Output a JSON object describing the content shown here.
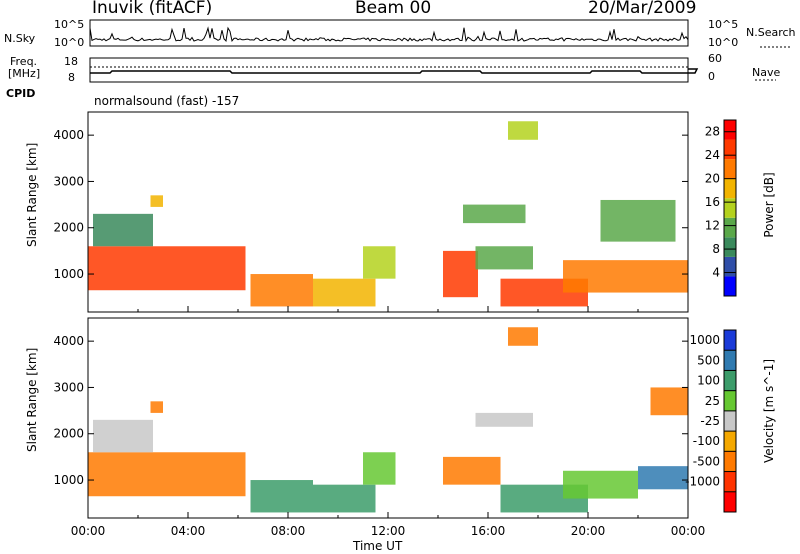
{
  "header": {
    "station": "Inuvik (fitACF)",
    "beam": "Beam 00",
    "date": "20/Mar/2009"
  },
  "top_panels": {
    "nsky_label": "N.Sky",
    "nsearch_label": "N.Search",
    "nsky_ticks": [
      "10^5",
      "10^0"
    ],
    "nsearch_ticks": [
      "10^5",
      "10^0"
    ],
    "freq_label": "Freq.",
    "freq_unit": "[MHz]",
    "freq_ticks": [
      "18",
      "8"
    ],
    "nave_label": "Nave",
    "nave_ticks": [
      "60",
      "0"
    ],
    "cpid_label": "CPID",
    "cpid_value": "normalsound (fast) -157"
  },
  "colors": {
    "power": [
      "#0000ff",
      "#2f4ea8",
      "#3a8a5c",
      "#5aa84a",
      "#b4d21e",
      "#f2b400",
      "#ff7a00",
      "#ff3a00",
      "#ff0000"
    ],
    "velocity": [
      "#1a3ad8",
      "#2f7ab0",
      "#3c9c6a",
      "#66c832",
      "#c8c8c8",
      "#f4a800",
      "#ff7a00",
      "#ff3300",
      "#ff0000"
    ]
  },
  "chart_data": [
    {
      "type": "heatmap",
      "title": "Power",
      "xlabel": "Time UT",
      "ylabel": "Slant Range [km]",
      "xlim": [
        "00:00",
        "00:00"
      ],
      "ylim": [
        180,
        4500
      ],
      "x_tick_labels": [
        "00:00",
        "04:00",
        "08:00",
        "12:00",
        "16:00",
        "20:00",
        "00:00"
      ],
      "y_ticks": [
        1000,
        2000,
        3000,
        4000
      ],
      "colorbar": {
        "label": "Power [dB]",
        "ticks": [
          4,
          8,
          12,
          16,
          20,
          24,
          28
        ],
        "range": [
          0,
          30
        ]
      },
      "regions": [
        {
          "t": [
            0.0,
            6.3
          ],
          "r": [
            650,
            1600
          ],
          "v": 24
        },
        {
          "t": [
            0.2,
            2.6
          ],
          "r": [
            1600,
            2300
          ],
          "v": 9
        },
        {
          "t": [
            2.5,
            3.0
          ],
          "r": [
            2450,
            2700
          ],
          "v": 18
        },
        {
          "t": [
            6.5,
            9.0
          ],
          "r": [
            300,
            1000
          ],
          "v": 22
        },
        {
          "t": [
            9.0,
            11.5
          ],
          "r": [
            300,
            900
          ],
          "v": 18
        },
        {
          "t": [
            11.0,
            12.3
          ],
          "r": [
            900,
            1600
          ],
          "v": 14
        },
        {
          "t": [
            14.2,
            15.6
          ],
          "r": [
            500,
            1500
          ],
          "v": 24
        },
        {
          "t": [
            15.5,
            17.8
          ],
          "r": [
            1100,
            1600
          ],
          "v": 12
        },
        {
          "t": [
            16.8,
            18.0
          ],
          "r": [
            3900,
            4300
          ],
          "v": 16
        },
        {
          "t": [
            16.5,
            20.0
          ],
          "r": [
            300,
            900
          ],
          "v": 26
        },
        {
          "t": [
            19.0,
            24.0
          ],
          "r": [
            600,
            1300
          ],
          "v": 22
        },
        {
          "t": [
            15.0,
            17.5
          ],
          "r": [
            2100,
            2500
          ],
          "v": 12
        },
        {
          "t": [
            20.5,
            23.5
          ],
          "r": [
            1700,
            2600
          ],
          "v": 10
        }
      ]
    },
    {
      "type": "heatmap",
      "title": "Velocity",
      "xlabel": "Time UT",
      "ylabel": "Slant Range [km]",
      "xlim": [
        "00:00",
        "00:00"
      ],
      "ylim": [
        180,
        4500
      ],
      "x_tick_labels": [
        "00:00",
        "04:00",
        "08:00",
        "12:00",
        "16:00",
        "20:00",
        "00:00"
      ],
      "y_ticks": [
        1000,
        2000,
        3000,
        4000
      ],
      "colorbar": {
        "label": "Velocity [m s^-1]",
        "ticks": [
          "1000",
          "500",
          "100",
          "25",
          "-25",
          "-100",
          "-500",
          "-1000"
        ],
        "range": [
          -1200,
          1200
        ]
      },
      "regions": [
        {
          "t": [
            0.0,
            6.3
          ],
          "r": [
            650,
            1600
          ],
          "v": -150
        },
        {
          "t": [
            0.2,
            2.6
          ],
          "r": [
            1600,
            2300
          ],
          "v": 0
        },
        {
          "t": [
            2.5,
            3.0
          ],
          "r": [
            2450,
            2700
          ],
          "v": -200
        },
        {
          "t": [
            6.5,
            9.0
          ],
          "r": [
            300,
            1000
          ],
          "v": 150
        },
        {
          "t": [
            9.0,
            11.5
          ],
          "r": [
            300,
            900
          ],
          "v": 120
        },
        {
          "t": [
            11.0,
            12.3
          ],
          "r": [
            900,
            1600
          ],
          "v": 60
        },
        {
          "t": [
            14.2,
            16.5
          ],
          "r": [
            900,
            1500
          ],
          "v": -300
        },
        {
          "t": [
            15.5,
            17.8
          ],
          "r": [
            2150,
            2450
          ],
          "v": 0
        },
        {
          "t": [
            16.8,
            18.0
          ],
          "r": [
            3900,
            4300
          ],
          "v": -150
        },
        {
          "t": [
            16.5,
            20.0
          ],
          "r": [
            300,
            900
          ],
          "v": 100
        },
        {
          "t": [
            22.0,
            24.0
          ],
          "r": [
            800,
            1300
          ],
          "v": 600
        },
        {
          "t": [
            19.0,
            22.0
          ],
          "r": [
            600,
            1200
          ],
          "v": 80
        },
        {
          "t": [
            22.5,
            24.0
          ],
          "r": [
            2400,
            3000
          ],
          "v": -300
        }
      ]
    }
  ]
}
